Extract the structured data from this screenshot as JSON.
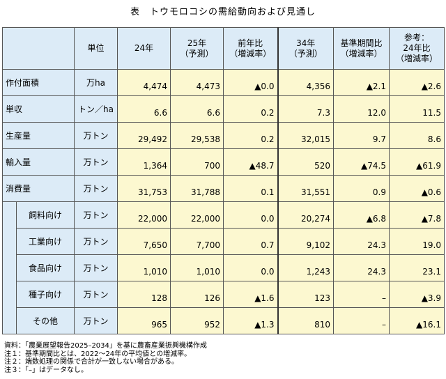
{
  "title": "表　トウモロコシの需給動向および見通し",
  "header": {
    "unit": "単位",
    "y24": "24年",
    "y25_line1": "25年",
    "y25_line2": "（予測）",
    "yoy_line1": "前年比",
    "yoy_line2": "（増減率）",
    "y34_line1": "34年",
    "y34_line2": "（予測）",
    "base_line1": "基準期間比",
    "base_line2": "（増減率）",
    "ref_line1": "参考：",
    "ref_line2": "24年比",
    "ref_line3": "（増減率）"
  },
  "rows": [
    {
      "label": "作付面積",
      "unit": "万ha",
      "y24": "4,474",
      "y25": "4,473",
      "yoy": "▲0.0",
      "y34": "4,356",
      "base": "▲2.1",
      "ref": "▲2.6"
    },
    {
      "label": "単収",
      "unit": "トン／ha",
      "y24": "6.6",
      "y25": "6.6",
      "yoy": "0.2",
      "y34": "7.3",
      "base": "12.0",
      "ref": "11.5"
    },
    {
      "label": "生産量",
      "unit": "万トン",
      "y24": "29,492",
      "y25": "29,538",
      "yoy": "0.2",
      "y34": "32,015",
      "base": "9.7",
      "ref": "8.6"
    },
    {
      "label": "輸入量",
      "unit": "万トン",
      "y24": "1,364",
      "y25": "700",
      "yoy": "▲48.7",
      "y34": "520",
      "base": "▲74.5",
      "ref": "▲61.9"
    },
    {
      "label": "消費量",
      "unit": "万トン",
      "y24": "31,753",
      "y25": "31,788",
      "yoy": "0.1",
      "y34": "31,551",
      "base": "0.9",
      "ref": "▲0.6"
    }
  ],
  "subrows": [
    {
      "label": "飼料向け",
      "unit": "万トン",
      "y24": "22,000",
      "y25": "22,000",
      "yoy": "0.0",
      "y34": "20,274",
      "base": "▲6.8",
      "ref": "▲7.8"
    },
    {
      "label": "工業向け",
      "unit": "万トン",
      "y24": "7,650",
      "y25": "7,700",
      "yoy": "0.7",
      "y34": "9,102",
      "base": "24.3",
      "ref": "19.0"
    },
    {
      "label": "食品向け",
      "unit": "万トン",
      "y24": "1,010",
      "y25": "1,010",
      "yoy": "0.0",
      "y34": "1,243",
      "base": "24.3",
      "ref": "23.1"
    },
    {
      "label": "種子向け",
      "unit": "万トン",
      "y24": "128",
      "y25": "126",
      "yoy": "▲1.6",
      "y34": "123",
      "base": "–",
      "ref": "▲3.9"
    },
    {
      "label": "その他",
      "unit": "万トン",
      "y24": "965",
      "y25": "952",
      "yoy": "▲1.3",
      "y34": "810",
      "base": "–",
      "ref": "▲16.1"
    }
  ],
  "notes": {
    "source": "資料：「農業展望報告2025–2034」を基に農畜産業振興機構作成",
    "note1": "注１：基準期間比とは、2022～24年の平均値との増減率。",
    "note2": "注２：端数処理の関係で合計が一致しない場合がある。",
    "note3": "注３：「–」はデータなし。"
  }
}
